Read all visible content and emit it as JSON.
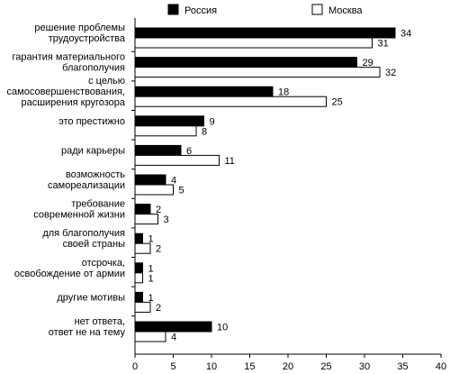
{
  "chart_data": {
    "type": "bar",
    "orientation": "horizontal",
    "categories": [
      [
        "решение проблемы",
        "трудоустройства"
      ],
      [
        "гарантия материального",
        "благополучия"
      ],
      [
        "с целью",
        "самосовершенствования,",
        "расширения кругозора"
      ],
      [
        "это престижно"
      ],
      [
        "ради карьеры"
      ],
      [
        "возможность",
        "самореализации"
      ],
      [
        "требование",
        "современной жизни"
      ],
      [
        "для благополучия",
        "своей страны"
      ],
      [
        "отсрочка,",
        "освобождение от армии"
      ],
      [
        "другие мотивы"
      ],
      [
        "нет ответа,",
        "ответ не на тему"
      ]
    ],
    "series": [
      {
        "name": "Россия",
        "color": "#000000",
        "values": [
          34,
          29,
          18,
          9,
          6,
          4,
          2,
          1,
          1,
          1,
          10
        ]
      },
      {
        "name": "Москва",
        "color": "#ffffff",
        "values": [
          31,
          32,
          25,
          8,
          11,
          5,
          3,
          2,
          1,
          2,
          4
        ]
      }
    ],
    "xlim": [
      0,
      40
    ],
    "xticks": [
      0,
      5,
      10,
      15,
      20,
      25,
      30,
      35,
      40
    ],
    "legend_position": "top",
    "grid": false,
    "title": "",
    "xlabel": "",
    "ylabel": ""
  }
}
